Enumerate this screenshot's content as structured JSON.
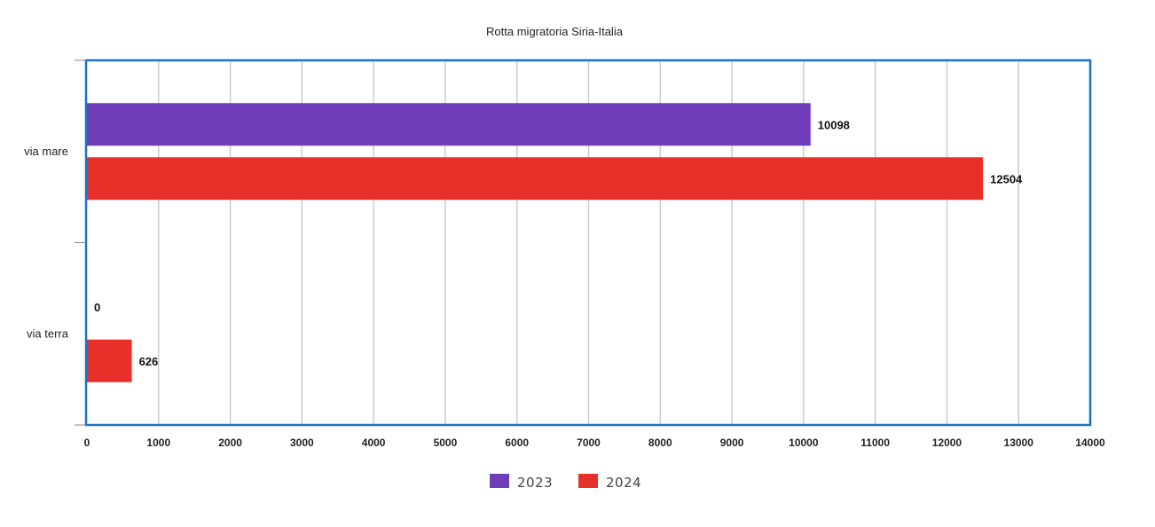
{
  "chart_data": {
    "type": "bar",
    "orientation": "horizontal",
    "title": "Rotta migratoria Siria-Italia",
    "categories": [
      "via mare",
      "via terra"
    ],
    "series": [
      {
        "name": "2023",
        "color": "#6f3db8",
        "values": [
          10098,
          0
        ]
      },
      {
        "name": "2024",
        "color": "#e8302a",
        "values": [
          12504,
          626
        ]
      }
    ],
    "xlim": [
      0,
      14000
    ],
    "x_ticks": [
      0,
      1000,
      2000,
      3000,
      4000,
      5000,
      6000,
      7000,
      8000,
      9000,
      10000,
      11000,
      12000,
      13000,
      14000
    ],
    "data_labels": true,
    "grid": "vertical",
    "legend_position": "bottom"
  }
}
